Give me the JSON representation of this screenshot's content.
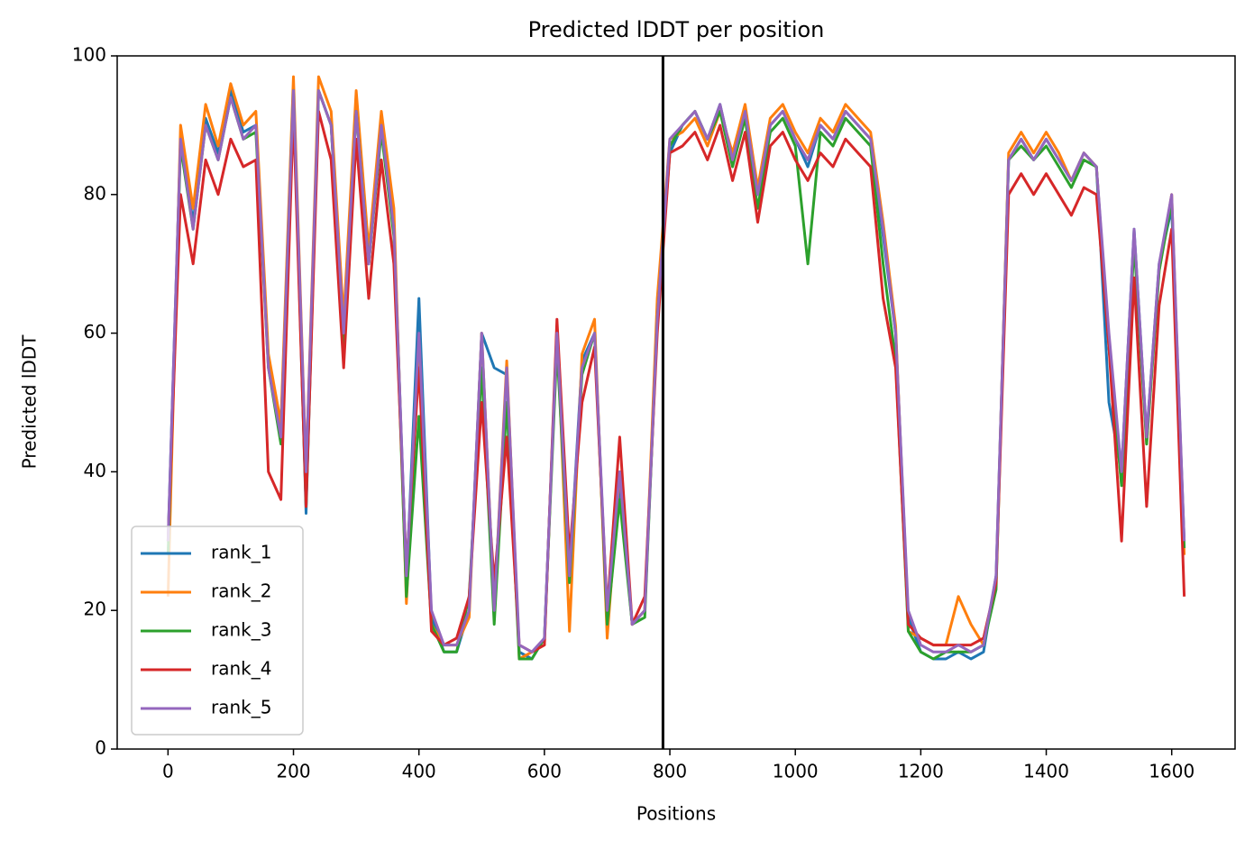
{
  "chart_data": {
    "type": "line",
    "title": "Predicted lDDT per position",
    "xlabel": "Positions",
    "ylabel": "Predicted lDDT",
    "x": [
      0,
      20,
      40,
      60,
      80,
      100,
      120,
      140,
      160,
      180,
      200,
      220,
      240,
      260,
      280,
      300,
      320,
      340,
      360,
      380,
      400,
      420,
      440,
      460,
      480,
      500,
      520,
      540,
      560,
      580,
      600,
      620,
      640,
      660,
      680,
      700,
      720,
      740,
      760,
      780,
      800,
      820,
      840,
      860,
      880,
      900,
      920,
      940,
      960,
      980,
      1000,
      1020,
      1040,
      1060,
      1080,
      1100,
      1120,
      1140,
      1160,
      1180,
      1200,
      1220,
      1240,
      1260,
      1280,
      1300,
      1320,
      1340,
      1360,
      1380,
      1400,
      1420,
      1440,
      1460,
      1480,
      1500,
      1520,
      1540,
      1560,
      1580,
      1600,
      1620
    ],
    "series": [
      {
        "name": "rank_1",
        "color": "#1f77b4",
        "values": [
          30,
          88,
          76,
          91,
          86,
          95,
          89,
          90,
          56,
          46,
          95,
          34,
          95,
          90,
          60,
          93,
          70,
          90,
          76,
          24,
          65,
          19,
          14,
          14,
          20,
          60,
          55,
          54,
          14,
          13,
          16,
          60,
          25,
          56,
          60,
          19,
          38,
          18,
          20,
          62,
          86,
          90,
          92,
          88,
          93,
          85,
          92,
          80,
          90,
          92,
          88,
          84,
          90,
          88,
          92,
          90,
          88,
          74,
          60,
          19,
          14,
          13,
          13,
          14,
          13,
          14,
          25,
          85,
          88,
          85,
          88,
          85,
          82,
          86,
          84,
          50,
          40,
          75,
          45,
          70,
          78,
          30
        ]
      },
      {
        "name": "rank_2",
        "color": "#ff7f0e",
        "values": [
          22,
          90,
          78,
          93,
          87,
          96,
          90,
          92,
          57,
          47,
          97,
          40,
          97,
          92,
          62,
          95,
          72,
          92,
          78,
          21,
          58,
          18,
          15,
          15,
          19,
          60,
          20,
          56,
          13,
          14,
          15,
          61,
          17,
          57,
          62,
          16,
          40,
          18,
          20,
          65,
          88,
          89,
          91,
          87,
          92,
          86,
          93,
          81,
          91,
          93,
          89,
          86,
          91,
          89,
          93,
          91,
          89,
          76,
          61,
          17,
          16,
          15,
          15,
          22,
          18,
          15,
          24,
          86,
          89,
          86,
          89,
          86,
          82,
          86,
          84,
          58,
          38,
          74,
          44,
          69,
          80,
          28
        ]
      },
      {
        "name": "rank_3",
        "color": "#2ca02c",
        "values": [
          28,
          87,
          75,
          90,
          85,
          94,
          88,
          89,
          55,
          44,
          95,
          35,
          95,
          90,
          58,
          92,
          70,
          89,
          74,
          22,
          48,
          18,
          14,
          14,
          22,
          55,
          18,
          50,
          13,
          13,
          16,
          58,
          24,
          54,
          60,
          18,
          36,
          18,
          19,
          62,
          87,
          90,
          92,
          88,
          92,
          84,
          91,
          78,
          89,
          91,
          87,
          70,
          89,
          87,
          91,
          89,
          87,
          70,
          56,
          17,
          14,
          13,
          14,
          14,
          14,
          15,
          23,
          85,
          87,
          85,
          87,
          84,
          81,
          85,
          84,
          58,
          38,
          73,
          44,
          69,
          79,
          29
        ]
      },
      {
        "name": "rank_4",
        "color": "#d62728",
        "values": [
          30,
          80,
          70,
          85,
          80,
          88,
          84,
          85,
          40,
          36,
          92,
          35,
          92,
          85,
          55,
          88,
          65,
          85,
          70,
          26,
          55,
          17,
          15,
          16,
          22,
          50,
          24,
          45,
          15,
          14,
          15,
          62,
          28,
          50,
          58,
          20,
          45,
          18,
          22,
          60,
          86,
          87,
          89,
          85,
          90,
          82,
          89,
          76,
          87,
          89,
          85,
          82,
          86,
          84,
          88,
          86,
          84,
          65,
          55,
          18,
          16,
          15,
          15,
          15,
          15,
          16,
          24,
          80,
          83,
          80,
          83,
          80,
          77,
          81,
          80,
          58,
          30,
          68,
          35,
          64,
          75,
          22
        ]
      },
      {
        "name": "rank_5",
        "color": "#9467bd",
        "values": [
          30,
          88,
          75,
          90,
          85,
          94,
          88,
          90,
          55,
          45,
          95,
          40,
          95,
          90,
          60,
          92,
          70,
          90,
          75,
          25,
          60,
          20,
          15,
          15,
          20,
          60,
          20,
          55,
          15,
          14,
          16,
          60,
          25,
          55,
          60,
          20,
          40,
          18,
          20,
          62,
          88,
          90,
          92,
          88,
          93,
          85,
          92,
          80,
          90,
          92,
          88,
          85,
          90,
          88,
          92,
          90,
          88,
          75,
          60,
          20,
          15,
          14,
          14,
          15,
          14,
          15,
          25,
          85,
          88,
          85,
          88,
          85,
          82,
          86,
          84,
          60,
          40,
          75,
          45,
          70,
          80,
          30
        ]
      }
    ],
    "vline": 789,
    "xlim": [
      -81,
      1701
    ],
    "ylim": [
      0,
      100
    ],
    "xticks": [
      0,
      200,
      400,
      600,
      800,
      1000,
      1200,
      1400,
      1600
    ],
    "yticks": [
      0,
      20,
      40,
      60,
      80,
      100
    ],
    "legend": "lower left"
  }
}
